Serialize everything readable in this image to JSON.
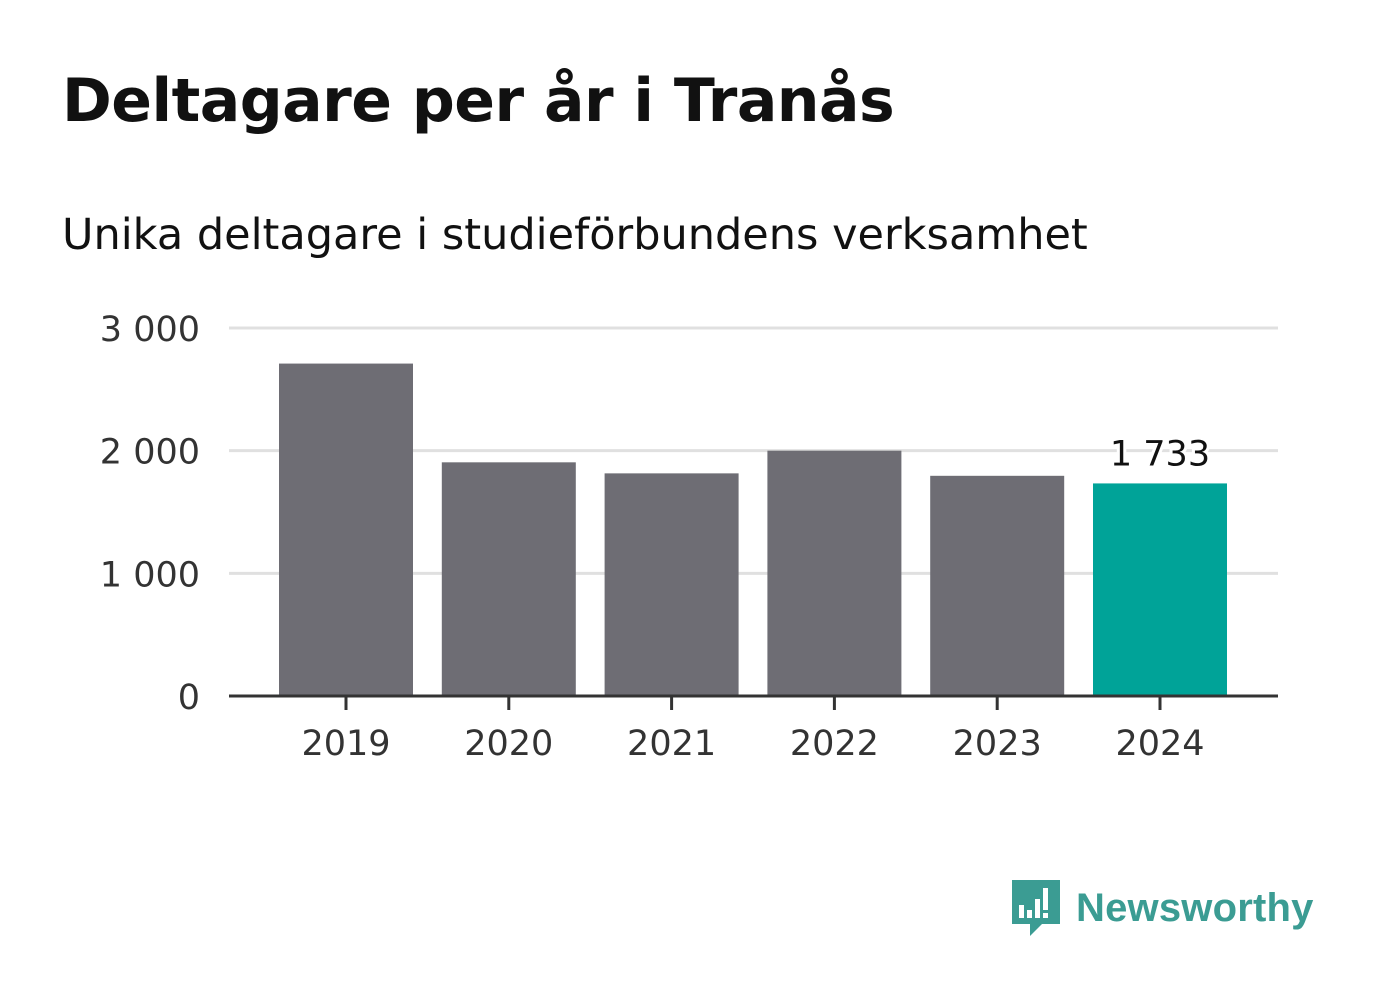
{
  "title": "Deltagare per år i Tranås",
  "subtitle": "Unika deltagare i studieförbundens verksamhet",
  "brand": {
    "name": "Newsworthy",
    "icon": "newsworthy-logo-icon",
    "color": "#3b9c93"
  },
  "chart_data": {
    "type": "bar",
    "categories": [
      "2019",
      "2020",
      "2021",
      "2022",
      "2023",
      "2024"
    ],
    "values": [
      2710,
      1905,
      1815,
      2000,
      1795,
      1733
    ],
    "ylim": [
      0,
      3000
    ],
    "yticks": [
      0,
      1000,
      2000,
      3000
    ],
    "ytick_labels": [
      "0",
      "1 000",
      "2 000",
      "3 000"
    ],
    "annotations": [
      {
        "category": "2024",
        "label": "1 733"
      }
    ],
    "highlight": "2024",
    "colors": {
      "default": "#6e6d74",
      "highlight": "#00a398",
      "grid": "#e0e0e0",
      "axis": "#333333"
    },
    "grid": true,
    "legend": "none",
    "xlabel": "",
    "ylabel": ""
  }
}
